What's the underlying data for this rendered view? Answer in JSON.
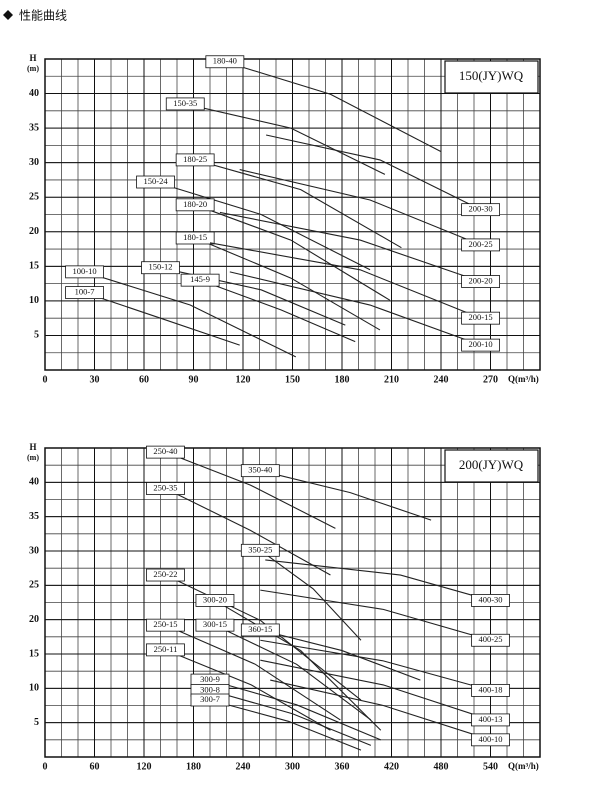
{
  "heading": "性能曲线",
  "chart_data": [
    {
      "type": "line",
      "title": "150(JY)WQ",
      "ylabel": [
        "H",
        "(m)"
      ],
      "xlabel": "Q(m³/h)",
      "xlim": [
        0,
        300
      ],
      "ylim": [
        0,
        45
      ],
      "xticks": [
        0,
        30,
        60,
        90,
        120,
        150,
        180,
        210,
        240,
        270
      ],
      "yticks": [
        5,
        10,
        15,
        20,
        25,
        30,
        35,
        40
      ],
      "grid": true,
      "color": "#222",
      "series": [
        {
          "name": "180-40",
          "x": [
            109,
            173,
            240
          ],
          "values": [
            44.6,
            39.9,
            31.6
          ]
        },
        {
          "name": "150-35",
          "x": [
            85,
            149,
            206
          ],
          "values": [
            38.5,
            35,
            28.3
          ]
        },
        {
          "name": "200-30",
          "x": [
            134,
            203,
            264
          ],
          "values": [
            34,
            30.4,
            23.2
          ]
        },
        {
          "name": "180-25",
          "x": [
            91,
            155,
            216
          ],
          "values": [
            30.4,
            26.1,
            17.7
          ]
        },
        {
          "name": "200-25",
          "x": [
            118,
            197,
            264
          ],
          "values": [
            29,
            24.6,
            18.1
          ]
        },
        {
          "name": "150-24",
          "x": [
            67,
            131,
            197
          ],
          "values": [
            27.2,
            22.5,
            14.5
          ]
        },
        {
          "name": "180-20",
          "x": [
            91,
            149,
            209
          ],
          "values": [
            23.9,
            18.8,
            10.1
          ]
        },
        {
          "name": "200-20",
          "x": [
            106,
            191,
            264
          ],
          "values": [
            22.8,
            18.8,
            12.8
          ]
        },
        {
          "name": "180-15",
          "x": [
            91,
            149,
            203
          ],
          "values": [
            19.1,
            13.3,
            5.8
          ]
        },
        {
          "name": "200-15",
          "x": [
            100,
            191,
            264
          ],
          "values": [
            18.4,
            14.5,
            7.5
          ]
        },
        {
          "name": "150-12",
          "x": [
            70,
            131,
            182
          ],
          "values": [
            14.8,
            11.6,
            6.5
          ]
        },
        {
          "name": "200-10",
          "x": [
            112,
            197,
            264
          ],
          "values": [
            14.2,
            9.4,
            3.6
          ]
        },
        {
          "name": "145-9",
          "x": [
            94,
            143,
            188
          ],
          "values": [
            13,
            8.7,
            4.1
          ]
        },
        {
          "name": "100-10",
          "x": [
            24,
            88,
            152
          ],
          "values": [
            14.2,
            9.4,
            1.9
          ]
        },
        {
          "name": "100-7",
          "x": [
            24,
            70,
            118
          ],
          "values": [
            11.2,
            7.5,
            3.6
          ]
        }
      ]
    },
    {
      "type": "line",
      "title": "200(JY)WQ",
      "ylabel": [
        "H",
        "(m)"
      ],
      "xlabel": "Q(m³/h)",
      "xlim": [
        0,
        600
      ],
      "ylim": [
        0,
        45
      ],
      "xticks": [
        0,
        60,
        120,
        180,
        240,
        300,
        360,
        420,
        480,
        540
      ],
      "yticks": [
        5,
        10,
        15,
        20,
        25,
        30,
        35,
        40
      ],
      "grid": true,
      "color": "#222",
      "series": [
        {
          "name": "250-40",
          "x": [
            146,
            249,
            352
          ],
          "values": [
            44.4,
            39.6,
            33.3
          ]
        },
        {
          "name": "250-35",
          "x": [
            146,
            249,
            346
          ],
          "values": [
            39.1,
            33,
            26.5
          ]
        },
        {
          "name": "350-40",
          "x": [
            261,
            370,
            468
          ],
          "values": [
            41.7,
            38.5,
            34.5
          ]
        },
        {
          "name": "250-22",
          "x": [
            146,
            261,
            383
          ],
          "values": [
            26.5,
            19.9,
            8.3
          ]
        },
        {
          "name": "350-25",
          "x": [
            261,
            325,
            383
          ],
          "values": [
            30.1,
            24.5,
            17
          ]
        },
        {
          "name": "400-30",
          "x": [
            267,
            431,
            540
          ],
          "values": [
            28.7,
            26.5,
            22.8
          ]
        },
        {
          "name": "300-20",
          "x": [
            206,
            310,
            407
          ],
          "values": [
            22.8,
            15.5,
            3.9
          ]
        },
        {
          "name": "300-15",
          "x": [
            206,
            305,
            395
          ],
          "values": [
            19.2,
            13.5,
            5.4
          ]
        },
        {
          "name": "400-25",
          "x": [
            261,
            410,
            540
          ],
          "values": [
            24.3,
            21.5,
            17
          ]
        },
        {
          "name": "250-15",
          "x": [
            146,
            255,
            358
          ],
          "values": [
            19.2,
            13.5,
            5.4
          ]
        },
        {
          "name": "360-15",
          "x": [
            261,
            360,
            455
          ],
          "values": [
            18.5,
            15.5,
            11.2
          ]
        },
        {
          "name": "400-18",
          "x": [
            261,
            410,
            540
          ],
          "values": [
            17,
            14,
            9.7
          ]
        },
        {
          "name": "250-11",
          "x": [
            146,
            250,
            346
          ],
          "values": [
            15.6,
            10.5,
            3.9
          ]
        },
        {
          "name": "400-13",
          "x": [
            261,
            410,
            540
          ],
          "values": [
            14.1,
            10.5,
            5.4
          ]
        },
        {
          "name": "300-9",
          "x": [
            200,
            305,
            407
          ],
          "values": [
            11.2,
            7.6,
            2.5
          ]
        },
        {
          "name": "300-8",
          "x": [
            200,
            300,
            395
          ],
          "values": [
            9.7,
            6.3,
            1.7
          ]
        },
        {
          "name": "300-7",
          "x": [
            200,
            295,
            383
          ],
          "values": [
            8.3,
            5.2,
            1
          ]
        },
        {
          "name": "400-10",
          "x": [
            273,
            410,
            540
          ],
          "values": [
            11.2,
            7.5,
            2.5
          ]
        }
      ]
    }
  ]
}
